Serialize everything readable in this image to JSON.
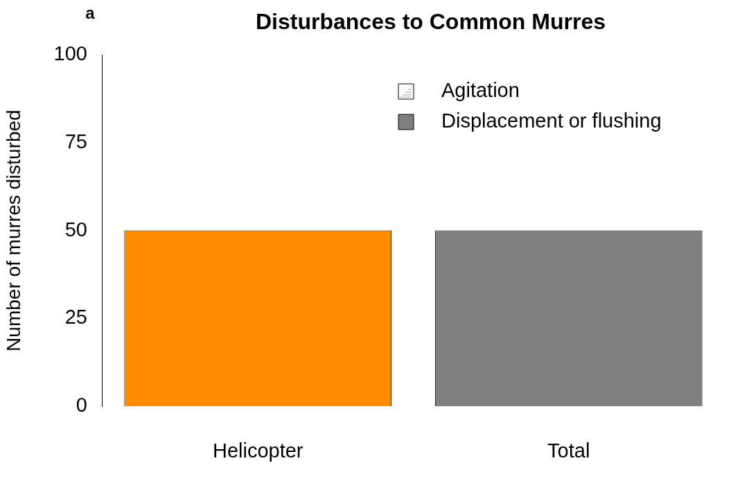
{
  "chart_data": {
    "type": "bar",
    "title": "Disturbances to Common Murres",
    "ylabel": "Number of murres disturbed",
    "annotations": [
      "a"
    ],
    "categories": [
      "Helicopter",
      "Total"
    ],
    "series": [
      {
        "name": "Agitation",
        "color": "#a0a0a0",
        "values": [
          0,
          0
        ]
      },
      {
        "name": "Displacement or flushing",
        "color": "#808080",
        "colors": [
          "#ff8c00",
          "#808080"
        ],
        "values": [
          50,
          50
        ]
      }
    ],
    "stacked": true,
    "ylim": [
      0,
      100
    ],
    "yticks": [
      0,
      25,
      50,
      75,
      100
    ],
    "grid": false,
    "legend": "top right"
  }
}
